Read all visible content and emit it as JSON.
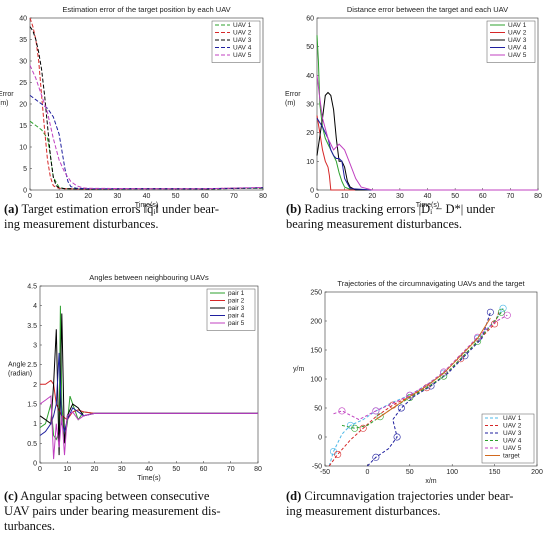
{
  "chart_data": [
    {
      "id": "a",
      "type": "line",
      "title": "Estimation error of the target position by each UAV",
      "xlabel": "Time(s)",
      "ylabel": "Error (m)",
      "ylabel_lines": [
        "Error",
        "(m)"
      ],
      "xlim": [
        0,
        80
      ],
      "ylim": [
        0,
        40
      ],
      "xticks": [
        0,
        10,
        20,
        30,
        40,
        50,
        60,
        70,
        80
      ],
      "yticks": [
        0,
        5,
        10,
        15,
        20,
        25,
        30,
        35,
        40
      ],
      "legend": "top-right",
      "series": [
        {
          "name": "UAV 1",
          "color": "#2ca02c",
          "dash": "4,2",
          "x": [
            0,
            2,
            4,
            6,
            7,
            8,
            10,
            12,
            20,
            40,
            60,
            80
          ],
          "y": [
            16,
            15,
            14,
            12,
            8,
            3,
            0.6,
            0.3,
            0.2,
            0.3,
            0.3,
            0.4
          ]
        },
        {
          "name": "UAV 2",
          "color": "#d62728",
          "dash": "4,2",
          "x": [
            0,
            1,
            2,
            3,
            4,
            5,
            6,
            7,
            8,
            9,
            10,
            12,
            20,
            40,
            60,
            80
          ],
          "y": [
            40,
            38,
            35,
            30,
            22,
            14,
            7,
            3,
            1,
            0.6,
            0.4,
            0.3,
            0.2,
            0.3,
            0.3,
            0.5
          ]
        },
        {
          "name": "UAV 3",
          "color": "#000000",
          "dash": "4,2",
          "x": [
            0,
            1,
            2,
            3,
            4,
            5,
            6,
            7,
            8,
            9,
            10,
            12,
            20,
            40,
            60,
            80
          ],
          "y": [
            38,
            37,
            35,
            32,
            28,
            22,
            15,
            8,
            3,
            1,
            0.5,
            0.3,
            0.2,
            0.3,
            0.2,
            0.5
          ]
        },
        {
          "name": "UAV 4",
          "color": "#1f1f9f",
          "dash": "4,2",
          "x": [
            0,
            2,
            4,
            6,
            8,
            10,
            11,
            12,
            13,
            14,
            16,
            20,
            40,
            60,
            80
          ],
          "y": [
            22,
            21,
            20,
            19,
            17,
            13,
            9,
            5,
            2,
            0.8,
            0.4,
            0.3,
            0.3,
            0.3,
            0.5
          ]
        },
        {
          "name": "UAV 5",
          "color": "#c040c0",
          "dash": "4,2",
          "x": [
            0,
            2,
            4,
            6,
            8,
            10,
            12,
            14,
            16,
            18,
            20,
            40,
            60,
            80
          ],
          "y": [
            29,
            26,
            22,
            18,
            12,
            7,
            4,
            2,
            1,
            0.5,
            0.4,
            0.3,
            0.3,
            0.6
          ]
        }
      ]
    },
    {
      "id": "b",
      "type": "line",
      "title": "Distance error between the target and each UAV",
      "xlabel": "Time(s)",
      "ylabel": "Error (m)",
      "ylabel_lines": [
        "Error",
        "(m)"
      ],
      "xlim": [
        0,
        80
      ],
      "ylim": [
        0,
        60
      ],
      "xticks": [
        0,
        10,
        20,
        30,
        40,
        50,
        60,
        70,
        80
      ],
      "yticks": [
        0,
        10,
        20,
        30,
        40,
        50,
        60
      ],
      "legend": "top-right",
      "series": [
        {
          "name": "UAV 1",
          "color": "#2ca02c",
          "x": [
            0,
            0.5,
            1,
            2,
            3,
            4,
            5,
            6,
            7,
            8,
            9,
            10,
            12,
            20,
            80
          ],
          "y": [
            54,
            45,
            30,
            22,
            18,
            16,
            14,
            12,
            10,
            6,
            3,
            1,
            0.2,
            0,
            0
          ]
        },
        {
          "name": "UAV 2",
          "color": "#d62728",
          "x": [
            0,
            1,
            2,
            3,
            4,
            4.5,
            5,
            80
          ],
          "y": [
            26,
            20,
            14,
            10,
            8,
            5,
            0,
            0
          ]
        },
        {
          "name": "UAV 3",
          "color": "#000000",
          "x": [
            0,
            2,
            3,
            4,
            5,
            6,
            7,
            8,
            9,
            10,
            11,
            12,
            14,
            20,
            80
          ],
          "y": [
            12,
            25,
            33,
            34,
            33,
            28,
            18,
            10,
            10,
            8,
            3,
            1,
            0,
            0,
            0
          ]
        },
        {
          "name": "UAV 4",
          "color": "#1f1f9f",
          "x": [
            0,
            2,
            4,
            5,
            6,
            7,
            8,
            9,
            10,
            12,
            20,
            80
          ],
          "y": [
            25,
            22,
            18,
            14,
            12,
            11,
            11,
            10,
            4,
            0.5,
            0,
            0
          ]
        },
        {
          "name": "UAV 5",
          "color": "#c040c0",
          "x": [
            0,
            1,
            2,
            4,
            6,
            8,
            10,
            12,
            14,
            16,
            20,
            80
          ],
          "y": [
            40,
            32,
            25,
            18,
            14,
            16,
            14,
            9,
            4,
            1,
            0,
            0
          ]
        }
      ]
    },
    {
      "id": "c",
      "type": "line",
      "title": "Angles between neighbouring UAVs",
      "xlabel": "Time(s)",
      "ylabel": "Angle (radian)",
      "ylabel_lines": [
        "Angle",
        "(radian)"
      ],
      "xlim": [
        0,
        80
      ],
      "ylim": [
        0,
        4.5
      ],
      "xticks": [
        0,
        10,
        20,
        30,
        40,
        50,
        60,
        70,
        80
      ],
      "yticks": [
        0,
        0.5,
        1,
        1.5,
        2,
        2.5,
        3,
        3.5,
        4,
        4.5
      ],
      "legend": "top-right",
      "series": [
        {
          "name": "pair 1",
          "color": "#2ca02c",
          "x": [
            0,
            2,
            4,
            5,
            6,
            7,
            7.5,
            8,
            9,
            10,
            11,
            12,
            14,
            16,
            20,
            80
          ],
          "y": [
            0.9,
            1.0,
            1.5,
            0.7,
            0.6,
            0.8,
            4.0,
            1.5,
            0.6,
            1.0,
            1.7,
            1.5,
            1.1,
            1.3,
            1.26,
            1.26
          ]
        },
        {
          "name": "pair 2",
          "color": "#d62728",
          "x": [
            0,
            2,
            4,
            5,
            6,
            8,
            10,
            12,
            14,
            16,
            20,
            80
          ],
          "y": [
            2.0,
            2.0,
            2.1,
            2.0,
            1.5,
            1.2,
            1.1,
            1.3,
            1.35,
            1.3,
            1.26,
            1.26
          ]
        },
        {
          "name": "pair 3",
          "color": "#000000",
          "x": [
            0,
            2,
            4,
            5,
            6,
            7,
            8,
            9,
            10,
            12,
            14,
            16,
            20,
            80
          ],
          "y": [
            1.2,
            1.1,
            1.0,
            2.0,
            3.4,
            0.2,
            3.8,
            0.5,
            1.2,
            1.5,
            1.4,
            1.2,
            1.26,
            1.26
          ]
        },
        {
          "name": "pair 4",
          "color": "#1f1f9f",
          "x": [
            0,
            2,
            4,
            5,
            6,
            7,
            8,
            9,
            10,
            12,
            16,
            20,
            80
          ],
          "y": [
            0.7,
            0.8,
            1.0,
            1.2,
            1.5,
            2.8,
            1.0,
            0.8,
            1.1,
            1.4,
            1.2,
            1.26,
            1.26
          ]
        },
        {
          "name": "pair 5",
          "color": "#c040c0",
          "x": [
            0,
            2,
            4,
            5,
            6,
            7,
            8,
            9,
            10,
            12,
            14,
            16,
            20,
            80
          ],
          "y": [
            1.5,
            1.6,
            1.7,
            0.1,
            1.0,
            0.4,
            1.2,
            0.2,
            1.2,
            1.3,
            1.1,
            1.2,
            1.26,
            1.26
          ]
        }
      ]
    },
    {
      "id": "d",
      "type": "line",
      "title": "Trajectories of the circumnavigating UAVs and the target",
      "xlabel": "x/m",
      "ylabel": "y/m",
      "ylabel_lines": [
        "y/m"
      ],
      "xlim": [
        -50,
        200
      ],
      "ylim": [
        -50,
        250
      ],
      "xticks": [
        -50,
        0,
        50,
        100,
        150,
        200
      ],
      "yticks": [
        -50,
        0,
        50,
        100,
        150,
        200,
        250
      ],
      "legend": "bottom-right",
      "series": [
        {
          "name": "UAV 1",
          "color": "#4db8e8",
          "x": [
            -45,
            -40,
            -30,
            -20,
            -5,
            10,
            30,
            50,
            70,
            90,
            110,
            130,
            150,
            160
          ],
          "y": [
            -50,
            -25,
            5,
            20,
            30,
            45,
            60,
            72,
            90,
            110,
            140,
            170,
            200,
            222
          ]
        },
        {
          "name": "UAV 2",
          "color": "#d62728",
          "x": [
            -45,
            -35,
            -20,
            -5,
            10,
            30,
            50,
            70,
            90,
            110,
            130,
            150,
            155
          ],
          "y": [
            -50,
            -30,
            -5,
            15,
            35,
            55,
            70,
            85,
            105,
            135,
            165,
            195,
            215
          ]
        },
        {
          "name": "UAV 3",
          "color": "#1f1f9f",
          "x": [
            0,
            10,
            25,
            35,
            30,
            40,
            55,
            75,
            95,
            115,
            135,
            145
          ],
          "y": [
            -50,
            -35,
            -20,
            0,
            30,
            50,
            70,
            88,
            110,
            140,
            170,
            215
          ]
        },
        {
          "name": "UAV 4",
          "color": "#2ca02c",
          "x": [
            -30,
            -15,
            0,
            15,
            30,
            50,
            70,
            90,
            110,
            130,
            150,
            158
          ],
          "y": [
            20,
            15,
            20,
            35,
            50,
            68,
            85,
            105,
            135,
            165,
            200,
            215
          ]
        },
        {
          "name": "UAV 5",
          "color": "#c040c0",
          "x": [
            -40,
            -30,
            -10,
            10,
            30,
            50,
            70,
            90,
            110,
            130,
            150,
            165
          ],
          "y": [
            40,
            45,
            30,
            45,
            58,
            72,
            90,
            112,
            142,
            172,
            198,
            210
          ]
        },
        {
          "name": "target",
          "color": "#d2691e",
          "x": [
            10,
            20,
            35,
            50,
            70,
            90,
            110,
            130,
            145
          ],
          "y": [
            30,
            40,
            55,
            70,
            88,
            110,
            140,
            170,
            205
          ]
        }
      ]
    }
  ],
  "captions": [
    {
      "label": "(a)",
      "line1": " Target estimation errors ‖q̃ᵢ‖ under bear-",
      "line2": "ing measurement disturbances."
    },
    {
      "label": "(b)",
      "line1": " Radius tracking errors |Dᵢ − D*| under",
      "line2": "bearing measurement disturbances."
    },
    {
      "label": "(c)",
      "line1": " Angular spacing between consecutive",
      "line2": "UAV pairs under bearing measurement dis-",
      "line3": "turbances."
    },
    {
      "label": "(d)",
      "line1": " Circumnavigation trajectories under bear-",
      "line2": "ing measurement disturbances."
    }
  ]
}
